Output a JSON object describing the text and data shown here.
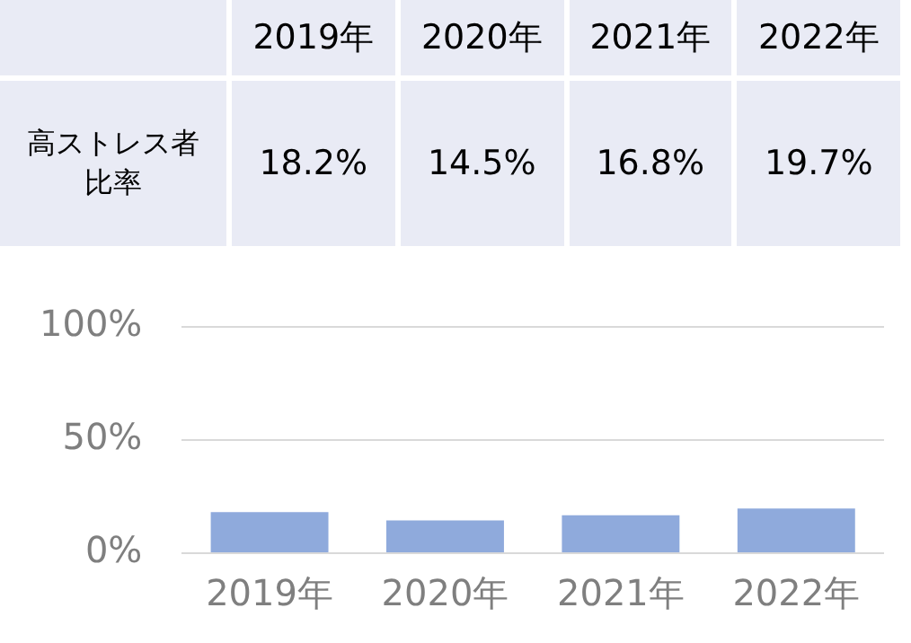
{
  "chart_data": {
    "type": "bar",
    "categories": [
      "2019年",
      "2020年",
      "2021年",
      "2022年"
    ],
    "values": [
      18.2,
      14.5,
      16.8,
      19.7
    ],
    "color": "#8faadc",
    "value_labels": [
      "18.2%",
      "14.5%",
      "16.8%",
      "19.7%"
    ],
    "annotations": [
      "高ストレス者比率"
    ],
    "ylim": [
      0,
      100
    ],
    "yticks": [
      {
        "value": 0,
        "label": "0%"
      },
      {
        "value": 50,
        "label": "50%"
      },
      {
        "value": 100,
        "label": "100%"
      }
    ],
    "grid": "y"
  }
}
